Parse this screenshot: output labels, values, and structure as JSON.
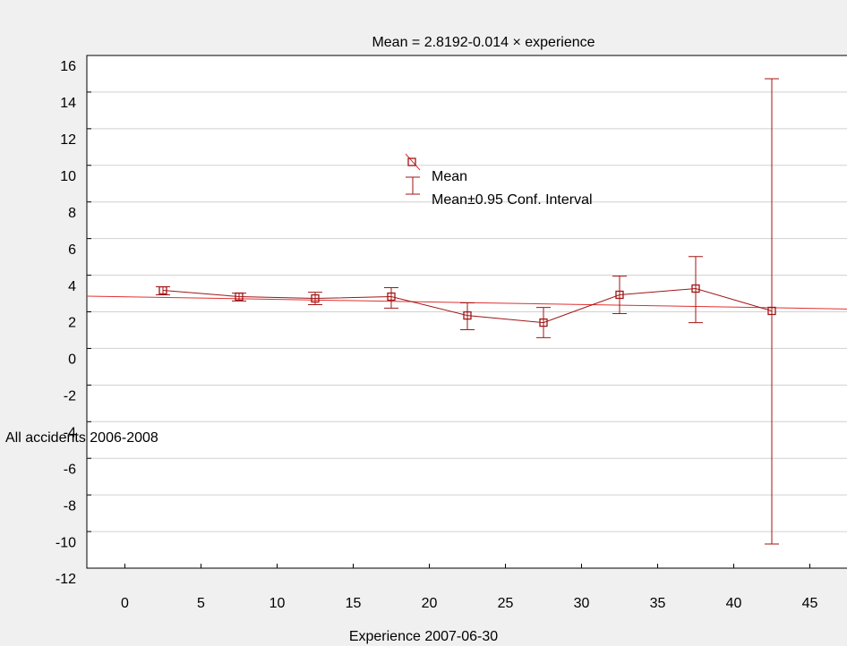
{
  "chart_data": {
    "type": "errorbar-line",
    "title": "Mean = 2.8192-0.014 × experience",
    "x_label": "Experience 2007-06-30",
    "y_label": "All accidents 2006-2008",
    "x": [
      2.5,
      7.5,
      12.5,
      17.5,
      22.5,
      27.5,
      32.5,
      37.5,
      42.5
    ],
    "series": [
      {
        "name": "Mean",
        "color": "#a01515",
        "values": [
          3.17,
          2.83,
          2.73,
          2.83,
          1.8,
          1.41,
          2.93,
          3.27,
          2.05
        ],
        "lower": [
          2.93,
          2.59,
          2.39,
          2.2,
          1.02,
          0.59,
          1.9,
          1.41,
          -10.68
        ],
        "upper": [
          3.37,
          3.02,
          3.07,
          3.32,
          2.49,
          2.24,
          3.95,
          5.02,
          14.73
        ]
      }
    ],
    "ci_label": "Mean±0.95 Conf. Interval",
    "fit": {
      "intercept": 2.8192,
      "slope": -0.014,
      "color": "#e03030"
    },
    "xlim": [
      -2.5,
      47.5
    ],
    "xticks": [
      0,
      5,
      10,
      15,
      20,
      25,
      30,
      35,
      40,
      45
    ],
    "ylim": [
      -12,
      16
    ],
    "yticks": [
      -12,
      -10,
      -8,
      -6,
      -4,
      -2,
      0,
      2,
      4,
      6,
      8,
      10,
      12,
      14,
      16
    ],
    "grid": true
  }
}
